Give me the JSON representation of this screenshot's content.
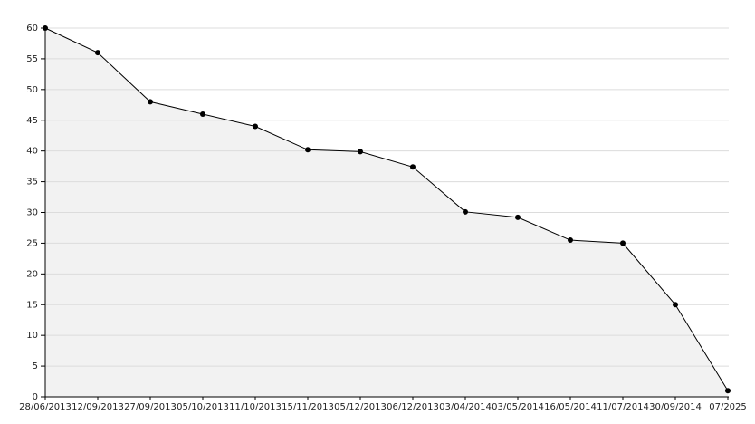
{
  "chart_data": {
    "type": "area",
    "color": "#000000",
    "fill": "#f2f2f2",
    "categories": [
      "28/06/2013",
      "12/09/2013",
      "27/09/2013",
      "05/10/2013",
      "11/10/2013",
      "15/11/2013",
      "05/12/2013",
      "06/12/2013",
      "03/04/2014",
      "03/05/2014",
      "16/05/2014",
      "11/07/2014",
      "30/09/2014",
      "07/2025"
    ],
    "values": [
      60,
      56,
      48,
      46,
      44,
      40.2,
      39.9,
      37.4,
      30.1,
      29.2,
      25.5,
      25,
      15,
      1
    ],
    "ylim": [
      0,
      60
    ],
    "yticks": [
      0,
      5,
      10,
      15,
      20,
      25,
      30,
      35,
      40,
      45,
      50,
      55,
      60
    ],
    "grid": true
  }
}
